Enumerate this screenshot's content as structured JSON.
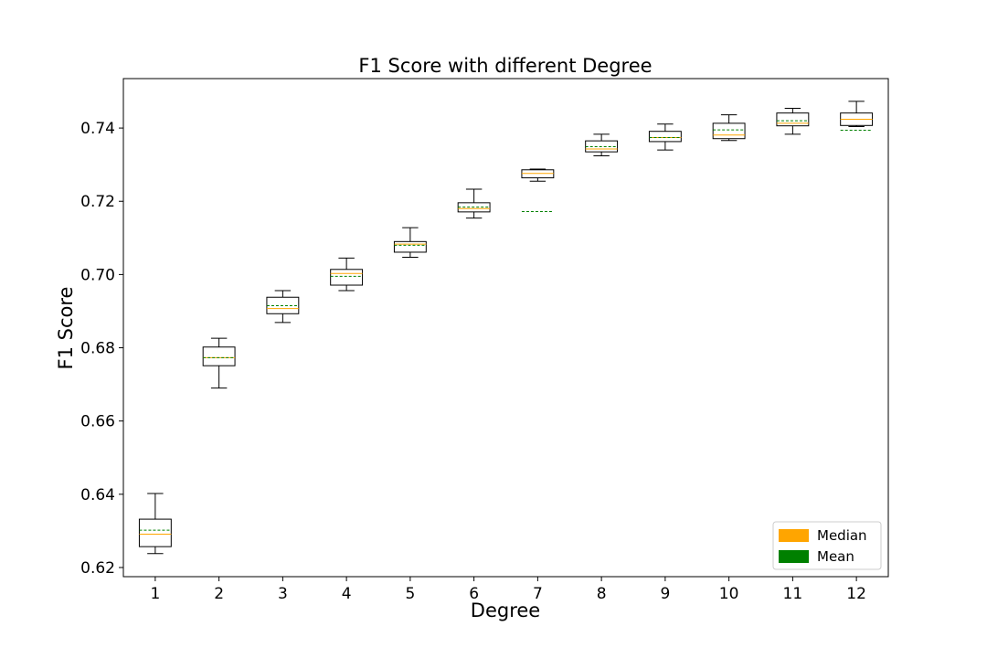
{
  "chart_data": {
    "type": "box",
    "title": "F1 Score with different Degree",
    "xlabel": "Degree",
    "ylabel": "F1 Score",
    "ylim": [
      0.6175,
      0.7535
    ],
    "yticks": [
      0.62,
      0.64,
      0.66,
      0.68,
      0.7,
      0.72,
      0.74
    ],
    "ytick_labels": [
      "0.62",
      "0.64",
      "0.66",
      "0.68",
      "0.70",
      "0.72",
      "0.74"
    ],
    "categories": [
      "1",
      "2",
      "3",
      "4",
      "5",
      "6",
      "7",
      "8",
      "9",
      "10",
      "11",
      "12"
    ],
    "boxes": [
      {
        "whislo": 0.6238,
        "q1": 0.6257,
        "med": 0.6291,
        "q3": 0.6332,
        "whishi": 0.6402,
        "mean": 0.6302
      },
      {
        "whislo": 0.669,
        "q1": 0.6751,
        "med": 0.6773,
        "q3": 0.6802,
        "whishi": 0.6826,
        "mean": 0.6773
      },
      {
        "whislo": 0.6869,
        "q1": 0.6893,
        "med": 0.6907,
        "q3": 0.6938,
        "whishi": 0.6956,
        "mean": 0.6915
      },
      {
        "whislo": 0.6956,
        "q1": 0.6971,
        "med": 0.7003,
        "q3": 0.7014,
        "whishi": 0.7045,
        "mean": 0.6995
      },
      {
        "whislo": 0.7047,
        "q1": 0.7061,
        "med": 0.7083,
        "q3": 0.709,
        "whishi": 0.7128,
        "mean": 0.708
      },
      {
        "whislo": 0.7154,
        "q1": 0.7171,
        "med": 0.718,
        "q3": 0.7196,
        "whishi": 0.7233,
        "mean": 0.7184
      },
      {
        "whislo": 0.7255,
        "q1": 0.7264,
        "med": 0.7276,
        "q3": 0.7286,
        "whishi": 0.7288,
        "mean": 0.7172
      },
      {
        "whislo": 0.7324,
        "q1": 0.7335,
        "med": 0.7343,
        "q3": 0.7365,
        "whishi": 0.7383,
        "mean": 0.7349
      },
      {
        "whislo": 0.734,
        "q1": 0.7363,
        "med": 0.7374,
        "q3": 0.7391,
        "whishi": 0.7411,
        "mean": 0.7374
      },
      {
        "whislo": 0.7366,
        "q1": 0.7371,
        "med": 0.7381,
        "q3": 0.7413,
        "whishi": 0.7436,
        "mean": 0.7395
      },
      {
        "whislo": 0.7383,
        "q1": 0.7406,
        "med": 0.7413,
        "q3": 0.7441,
        "whishi": 0.7454,
        "mean": 0.742
      },
      {
        "whislo": 0.7404,
        "q1": 0.7407,
        "med": 0.7424,
        "q3": 0.7441,
        "whishi": 0.7473,
        "mean": 0.7394
      }
    ],
    "legend": {
      "position": "lower-right",
      "entries": [
        {
          "label": "Median",
          "color": "#ffa500"
        },
        {
          "label": "Mean",
          "color": "#008000"
        }
      ]
    },
    "grid": false
  },
  "colors": {
    "median": "#ffa500",
    "mean": "#008000",
    "box": "#000000"
  }
}
